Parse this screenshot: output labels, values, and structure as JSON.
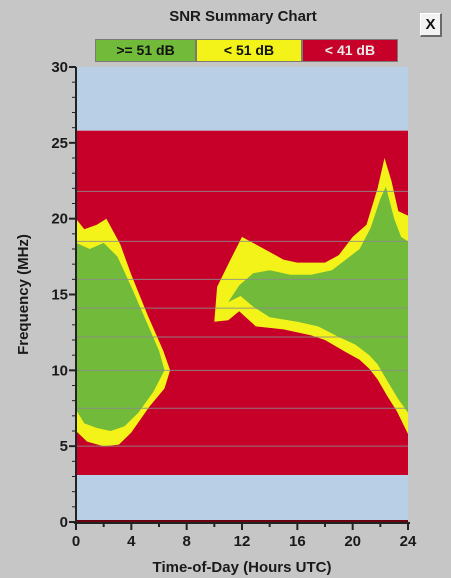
{
  "window": {
    "close_label": "X"
  },
  "chart_data": {
    "type": "heatmap",
    "title": "SNR Summary Chart",
    "xlabel": "Time-of-Day (Hours UTC)",
    "ylabel": "Frequency (MHz)",
    "xlim": [
      0,
      24
    ],
    "ylim": [
      0,
      30
    ],
    "x_ticks": [
      "0",
      "4",
      "8",
      "12",
      "16",
      "20",
      "24"
    ],
    "y_ticks": [
      "0",
      "5",
      "10",
      "15",
      "20",
      "25",
      "30"
    ],
    "legend": [
      {
        "label": ">= 51 dB",
        "color": "#72ba3a"
      },
      {
        "label": "< 51 dB",
        "color": "#f3f31a"
      },
      {
        "label": "< 41 dB",
        "color": "#c7002a"
      }
    ],
    "background_color": "#b9cfe6",
    "computed_band_mhz": [
      3.1,
      25.8
    ],
    "horizontal_gridlines_mhz": [
      5.0,
      7.5,
      10.0,
      12.2,
      14.1,
      16.0,
      18.5,
      21.8
    ],
    "regions": [
      {
        "level": "< 51 dB",
        "color": "#f3f31a",
        "polygon": [
          [
            0.0,
            6.0
          ],
          [
            0.0,
            20.0
          ],
          [
            0.6,
            19.3
          ],
          [
            1.5,
            19.6
          ],
          [
            2.2,
            20.0
          ],
          [
            3.2,
            18.3
          ],
          [
            4.0,
            16.3
          ],
          [
            5.2,
            13.6
          ],
          [
            6.3,
            11.3
          ],
          [
            6.8,
            10.0
          ],
          [
            6.4,
            8.8
          ],
          [
            5.3,
            7.6
          ],
          [
            4.0,
            5.9
          ],
          [
            3.1,
            5.1
          ],
          [
            2.0,
            5.0
          ],
          [
            0.8,
            5.3
          ],
          [
            0.0,
            6.0
          ]
        ]
      },
      {
        "level": ">= 51 dB",
        "color": "#72ba3a",
        "polygon": [
          [
            0.0,
            7.4
          ],
          [
            0.0,
            18.4
          ],
          [
            1.0,
            18.0
          ],
          [
            2.0,
            18.4
          ],
          [
            3.0,
            17.5
          ],
          [
            4.0,
            15.5
          ],
          [
            5.0,
            13.4
          ],
          [
            6.0,
            11.3
          ],
          [
            6.4,
            10.0
          ],
          [
            5.6,
            8.6
          ],
          [
            4.5,
            7.2
          ],
          [
            3.5,
            6.3
          ],
          [
            2.5,
            6.0
          ],
          [
            1.5,
            6.2
          ],
          [
            0.6,
            6.5
          ],
          [
            0.0,
            7.4
          ]
        ]
      },
      {
        "level": "< 51 dB",
        "color": "#f3f31a",
        "polygon": [
          [
            10.0,
            13.2
          ],
          [
            10.2,
            15.5
          ],
          [
            11.0,
            17.0
          ],
          [
            12.0,
            18.8
          ],
          [
            13.0,
            18.3
          ],
          [
            14.0,
            17.8
          ],
          [
            15.0,
            17.3
          ],
          [
            16.0,
            17.1
          ],
          [
            17.0,
            17.1
          ],
          [
            18.0,
            17.1
          ],
          [
            19.0,
            17.6
          ],
          [
            20.0,
            18.8
          ],
          [
            21.0,
            19.6
          ],
          [
            21.8,
            22.0
          ],
          [
            22.3,
            24.0
          ],
          [
            22.8,
            22.5
          ],
          [
            23.3,
            20.5
          ],
          [
            24.0,
            20.2
          ],
          [
            24.0,
            5.8
          ],
          [
            23.2,
            7.3
          ],
          [
            22.5,
            8.3
          ],
          [
            21.8,
            9.4
          ],
          [
            21.2,
            10.1
          ],
          [
            20.5,
            10.7
          ],
          [
            19.5,
            11.2
          ],
          [
            18.0,
            12.0
          ],
          [
            17.0,
            12.3
          ],
          [
            15.0,
            12.7
          ],
          [
            13.0,
            12.9
          ],
          [
            11.8,
            13.9
          ],
          [
            11.0,
            13.3
          ],
          [
            10.0,
            13.2
          ]
        ]
      },
      {
        "level": ">= 51 dB",
        "color": "#72ba3a",
        "polygon": [
          [
            11.0,
            14.5
          ],
          [
            11.8,
            15.6
          ],
          [
            12.8,
            16.4
          ],
          [
            14.0,
            16.6
          ],
          [
            15.5,
            16.3
          ],
          [
            17.0,
            16.3
          ],
          [
            18.5,
            16.6
          ],
          [
            19.5,
            17.3
          ],
          [
            20.5,
            18.0
          ],
          [
            21.3,
            19.4
          ],
          [
            22.0,
            21.3
          ],
          [
            22.4,
            22.1
          ],
          [
            23.0,
            20.0
          ],
          [
            23.5,
            18.8
          ],
          [
            24.0,
            18.5
          ],
          [
            24.0,
            7.2
          ],
          [
            23.3,
            8.1
          ],
          [
            22.5,
            9.3
          ],
          [
            21.8,
            10.4
          ],
          [
            21.2,
            11.0
          ],
          [
            20.2,
            11.7
          ],
          [
            19.0,
            12.2
          ],
          [
            17.5,
            12.9
          ],
          [
            16.0,
            13.2
          ],
          [
            14.0,
            13.5
          ],
          [
            12.8,
            14.2
          ],
          [
            11.9,
            14.9
          ],
          [
            11.0,
            14.5
          ]
        ]
      }
    ]
  }
}
